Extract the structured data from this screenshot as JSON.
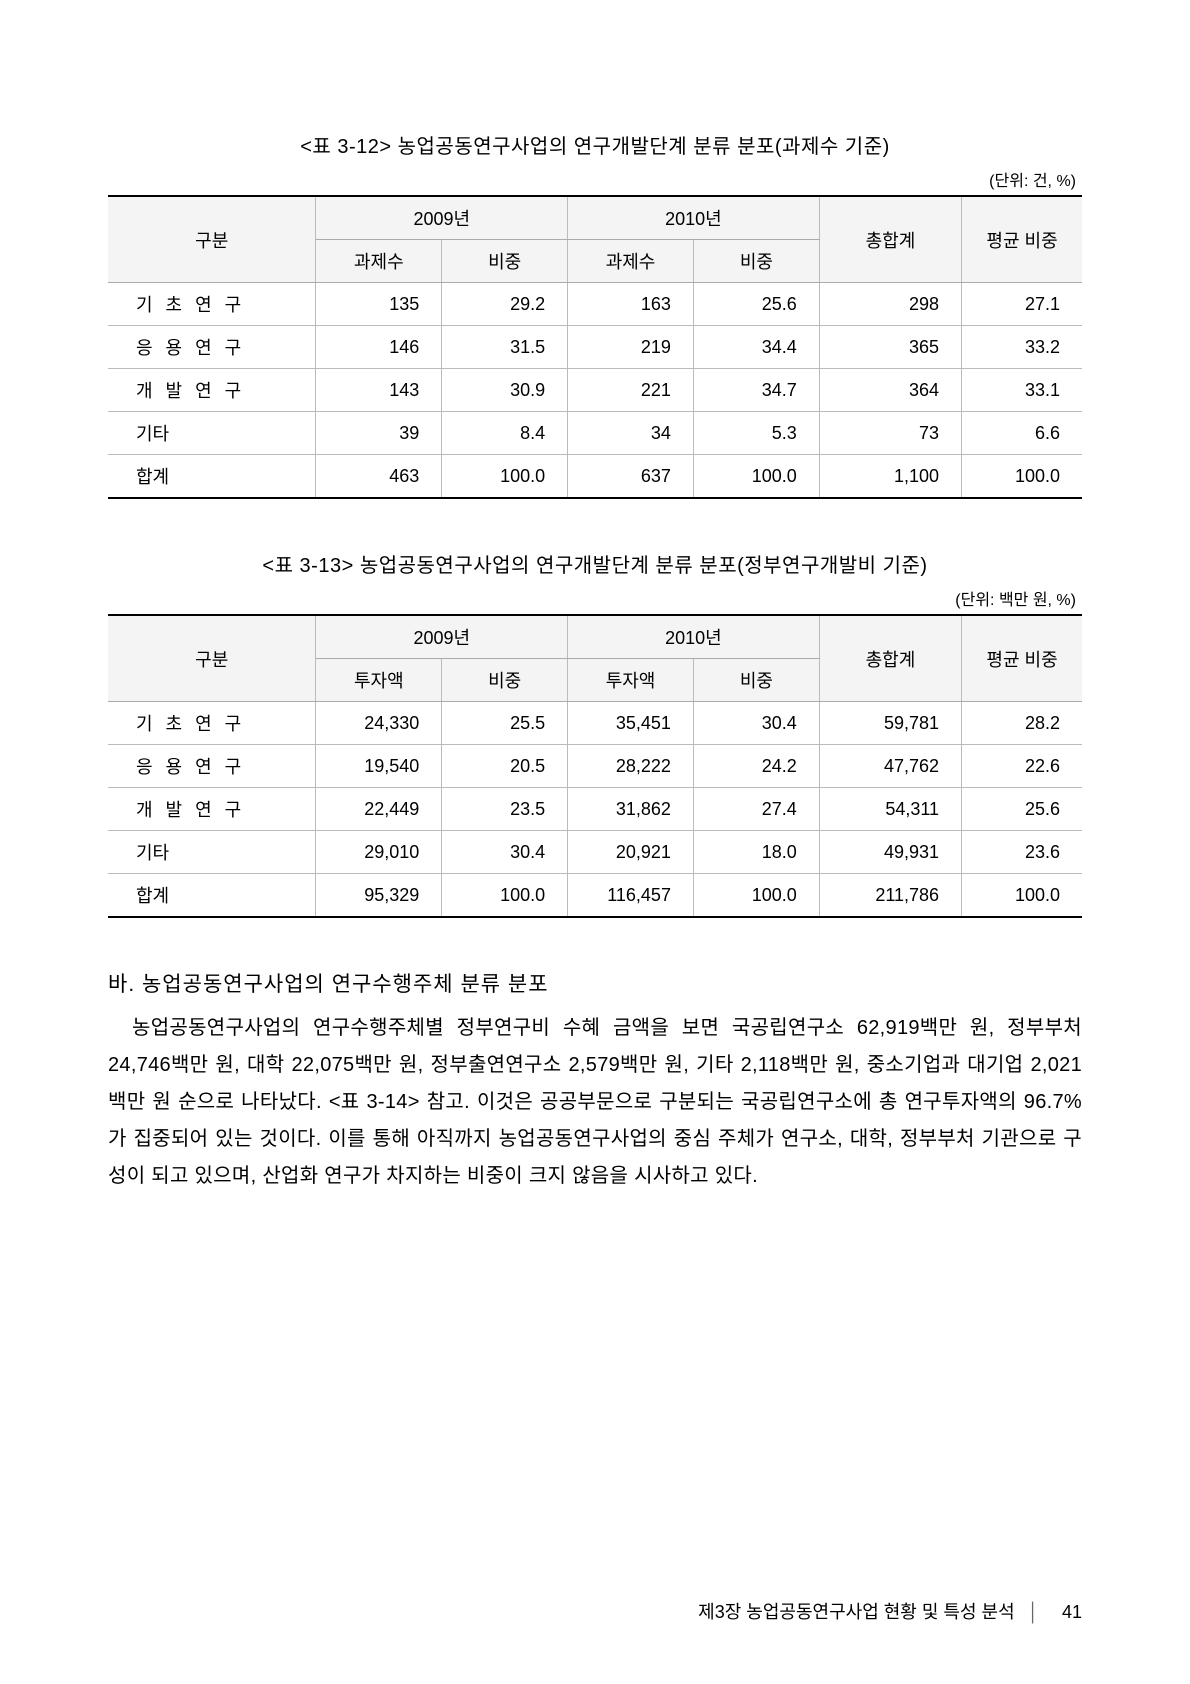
{
  "table1": {
    "title": "<표 3-12> 농업공동연구사업의 연구개발단계 분류 분포(과제수 기준)",
    "unit": "(단위: 건, %)",
    "header": {
      "category": "구분",
      "y2009": "2009년",
      "y2010": "2010년",
      "total": "총합계",
      "avg": "평균 비중",
      "count": "과제수",
      "ratio": "비중"
    },
    "rows": [
      {
        "cat": "기 초 연 구",
        "c09": "135",
        "r09": "29.2",
        "c10": "163",
        "r10": "25.6",
        "tot": "298",
        "avg": "27.1"
      },
      {
        "cat": "응 용 연 구",
        "c09": "146",
        "r09": "31.5",
        "c10": "219",
        "r10": "34.4",
        "tot": "365",
        "avg": "33.2"
      },
      {
        "cat": "개 발 연 구",
        "c09": "143",
        "r09": "30.9",
        "c10": "221",
        "r10": "34.7",
        "tot": "364",
        "avg": "33.1"
      },
      {
        "cat": "기타",
        "c09": "39",
        "r09": "8.4",
        "c10": "34",
        "r10": "5.3",
        "tot": "73",
        "avg": "6.6",
        "two": true
      },
      {
        "cat": "합계",
        "c09": "463",
        "r09": "100.0",
        "c10": "637",
        "r10": "100.0",
        "tot": "1,100",
        "avg": "100.0",
        "two": true
      }
    ]
  },
  "table2": {
    "title": "<표 3-13> 농업공동연구사업의 연구개발단계 분류 분포(정부연구개발비 기준)",
    "unit": "(단위: 백만 원, %)",
    "header": {
      "category": "구분",
      "y2009": "2009년",
      "y2010": "2010년",
      "total": "총합계",
      "avg": "평균 비중",
      "amount": "투자액",
      "ratio": "비중"
    },
    "rows": [
      {
        "cat": "기 초 연 구",
        "c09": "24,330",
        "r09": "25.5",
        "c10": "35,451",
        "r10": "30.4",
        "tot": "59,781",
        "avg": "28.2"
      },
      {
        "cat": "응 용 연 구",
        "c09": "19,540",
        "r09": "20.5",
        "c10": "28,222",
        "r10": "24.2",
        "tot": "47,762",
        "avg": "22.6"
      },
      {
        "cat": "개 발 연 구",
        "c09": "22,449",
        "r09": "23.5",
        "c10": "31,862",
        "r10": "27.4",
        "tot": "54,311",
        "avg": "25.6"
      },
      {
        "cat": "기타",
        "c09": "29,010",
        "r09": "30.4",
        "c10": "20,921",
        "r10": "18.0",
        "tot": "49,931",
        "avg": "23.6",
        "two": true
      },
      {
        "cat": "합계",
        "c09": "95,329",
        "r09": "100.0",
        "c10": "116,457",
        "r10": "100.0",
        "tot": "211,786",
        "avg": "100.0",
        "two": true
      }
    ]
  },
  "section": {
    "heading": "바. 농업공동연구사업의 연구수행주체 분류 분포",
    "body": "농업공동연구사업의 연구수행주체별 정부연구비 수혜 금액을 보면 국공립연구소 62,919백만 원, 정부부처 24,746백만 원, 대학 22,075백만 원, 정부출연연구소 2,579백만 원, 기타 2,118백만 원, 중소기업과 대기업 2,021백만 원 순으로 나타났다. <표 3-14> 참고. 이것은 공공부문으로 구분되는 국공립연구소에 총 연구투자액의 96.7% 가 집중되어 있는 것이다. 이를 통해 아직까지 농업공동연구사업의 중심 주체가 연구소, 대학, 정부부처 기관으로 구성이 되고 있으며, 산업화 연구가 차지하는 비중이 크지 않음을 시사하고 있다."
  },
  "footer": {
    "chapter": "제3장 농업공동연구사업 현황 및 특성 분석",
    "page": "41"
  },
  "colwidths": {
    "cat": "19%",
    "val": "11.5%",
    "ratio": "11.5%",
    "tot": "13%",
    "avg": "11%"
  }
}
